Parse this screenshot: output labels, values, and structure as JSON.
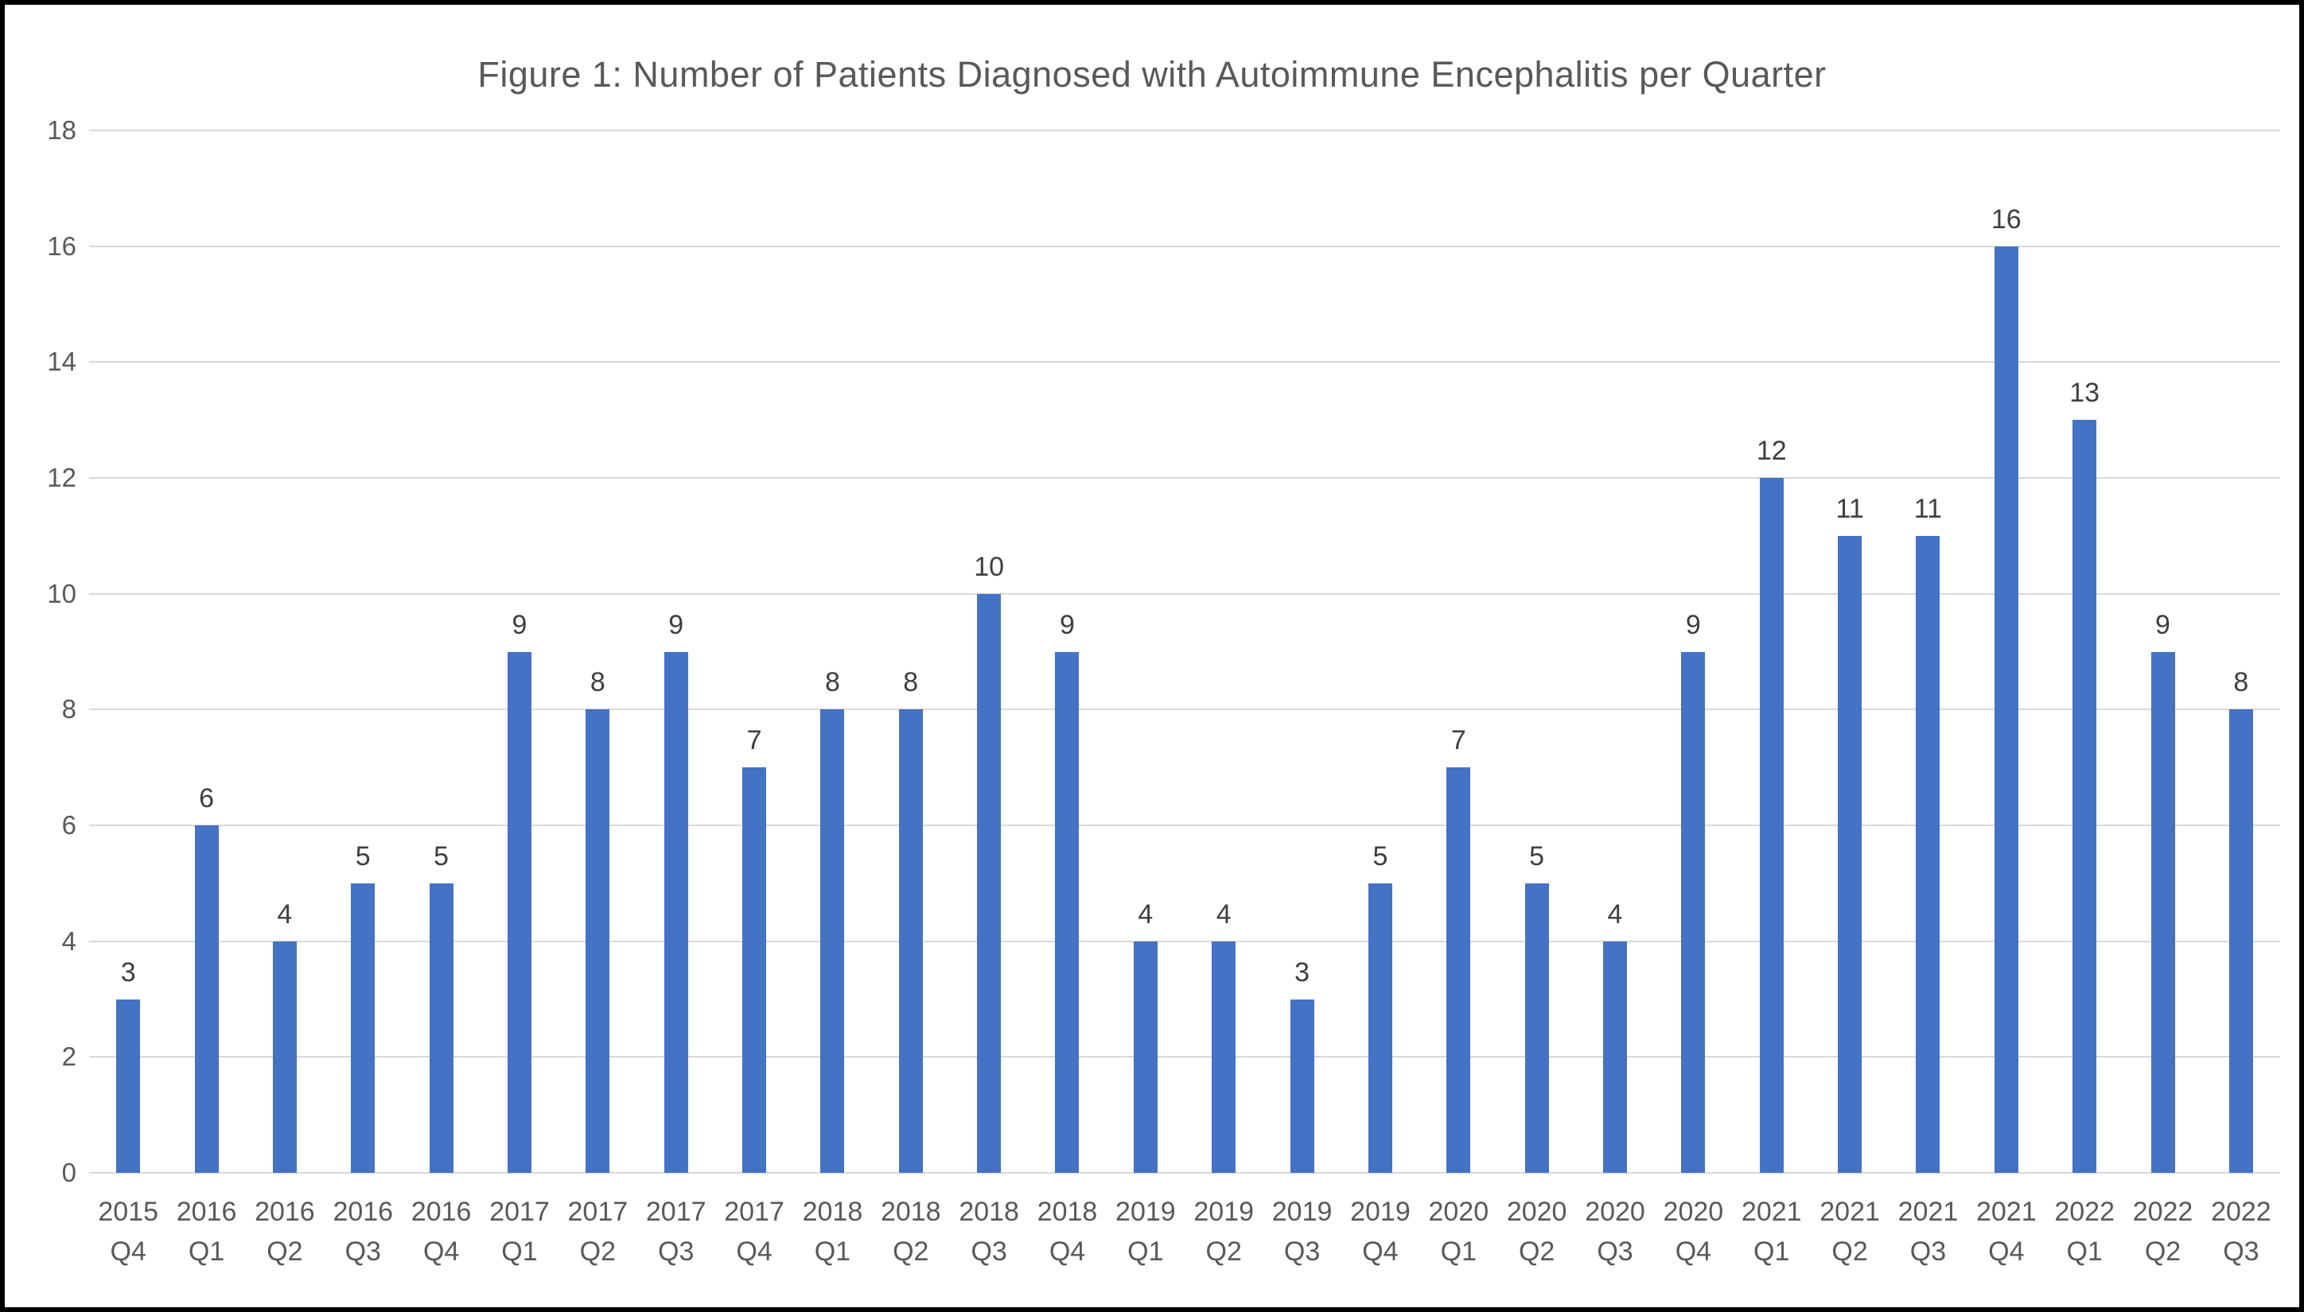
{
  "figure": {
    "background_color": "#ffffff",
    "frame_color": "#000000"
  },
  "chart_data": {
    "type": "bar",
    "title": "Figure 1: Number of Patients Diagnosed with Autoimmune Encephalitis per Quarter",
    "categories": [
      "2015 Q4",
      "2016 Q1",
      "2016 Q2",
      "2016 Q3",
      "2016 Q4",
      "2017 Q1",
      "2017 Q2",
      "2017 Q3",
      "2017 Q4",
      "2018 Q1",
      "2018 Q2",
      "2018 Q3",
      "2018 Q4",
      "2019 Q1",
      "2019 Q2",
      "2019 Q3",
      "2019 Q4",
      "2020 Q1",
      "2020 Q2",
      "2020 Q3",
      "2020 Q4",
      "2021 Q1",
      "2021 Q2",
      "2021 Q3",
      "2021 Q4",
      "2022 Q1",
      "2022 Q2",
      "2022 Q3"
    ],
    "values": [
      3,
      6,
      4,
      5,
      5,
      9,
      8,
      9,
      7,
      8,
      8,
      10,
      9,
      4,
      4,
      3,
      5,
      7,
      5,
      4,
      9,
      12,
      11,
      11,
      16,
      13,
      9,
      8
    ],
    "xlabel": "",
    "ylabel": "",
    "ylim": [
      0,
      18
    ],
    "yticks": [
      0,
      2,
      4,
      6,
      8,
      10,
      12,
      14,
      16,
      18
    ],
    "grid": "horizontal",
    "legend_position": "none",
    "data_labels_shown": true,
    "bar_color": "#4472c4",
    "gridline_color": "#d9d9d9",
    "title_color": "#595959",
    "axis_tick_color": "#595959",
    "data_label_color": "#3f3f3f"
  }
}
